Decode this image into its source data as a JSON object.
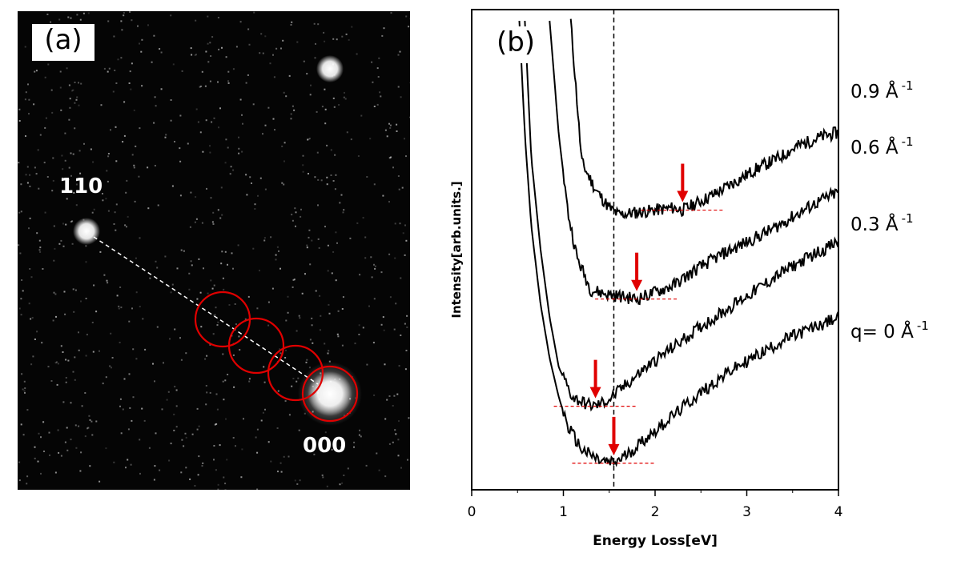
{
  "panel_a": {
    "label": "(a)",
    "spot_labels": [
      "110",
      "000"
    ]
  },
  "panel_b_label": "(b)",
  "colors": {
    "curve": "#000000",
    "marker": "#e00000",
    "diffraction_bg": "#050505",
    "spot": "#ffffff"
  },
  "chart_data": {
    "type": "line",
    "xlabel": "Energy Loss[eV]",
    "ylabel": "Intensity[arb.units.]",
    "xlim": [
      0,
      4
    ],
    "xticks": [
      "0",
      "1",
      "2",
      "3",
      "4"
    ],
    "grid": false,
    "vertical_reference_line_ev": 1.55,
    "series": [
      {
        "name": "0.9 Å-1",
        "label_main": "0.9 Å",
        "label_sup": "-1",
        "minimum_ev": 2.3,
        "points": [
          [
            1.08,
            10.0
          ],
          [
            1.2,
            6.9
          ],
          [
            1.35,
            6.3
          ],
          [
            1.5,
            5.9
          ],
          [
            1.6,
            5.75
          ],
          [
            1.8,
            5.8
          ],
          [
            2.0,
            5.85
          ],
          [
            2.2,
            5.9
          ],
          [
            2.3,
            5.85
          ],
          [
            2.45,
            6.0
          ],
          [
            2.65,
            6.2
          ],
          [
            2.9,
            6.5
          ],
          [
            3.1,
            6.75
          ],
          [
            3.35,
            7.0
          ],
          [
            3.55,
            7.25
          ],
          [
            3.8,
            7.45
          ],
          [
            4.0,
            7.55
          ]
        ]
      },
      {
        "name": "0.6 Å-1",
        "label_main": "0.6 Å",
        "label_sup": "-1",
        "minimum_ev": 1.8,
        "points": [
          [
            0.85,
            10.0
          ],
          [
            0.95,
            7.5
          ],
          [
            1.05,
            5.8
          ],
          [
            1.15,
            4.8
          ],
          [
            1.3,
            4.1
          ],
          [
            1.5,
            4.0
          ],
          [
            1.65,
            3.95
          ],
          [
            1.8,
            3.9
          ],
          [
            2.0,
            4.05
          ],
          [
            2.2,
            4.2
          ],
          [
            2.45,
            4.55
          ],
          [
            2.7,
            4.85
          ],
          [
            3.0,
            5.15
          ],
          [
            3.25,
            5.4
          ],
          [
            3.5,
            5.7
          ],
          [
            3.75,
            6.0
          ],
          [
            4.0,
            6.25
          ]
        ]
      },
      {
        "name": "0.3 Å-1",
        "label_main": "0.3 Å",
        "label_sup": "-1",
        "minimum_ev": 1.35,
        "points": [
          [
            0.58,
            10.0
          ],
          [
            0.65,
            7.0
          ],
          [
            0.75,
            5.0
          ],
          [
            0.85,
            3.5
          ],
          [
            0.95,
            2.4
          ],
          [
            1.1,
            1.75
          ],
          [
            1.25,
            1.6
          ],
          [
            1.35,
            1.55
          ],
          [
            1.5,
            1.7
          ],
          [
            1.7,
            2.05
          ],
          [
            1.9,
            2.4
          ],
          [
            2.2,
            2.85
          ],
          [
            2.5,
            3.3
          ],
          [
            2.8,
            3.7
          ],
          [
            3.1,
            4.1
          ],
          [
            3.4,
            4.5
          ],
          [
            3.7,
            4.85
          ],
          [
            4.0,
            5.15
          ]
        ]
      },
      {
        "name": "q= 0 Å-1",
        "label_main": "q= 0 Å",
        "label_sup": "-1",
        "minimum_ev": 1.55,
        "points": [
          [
            0.52,
            10.0
          ],
          [
            0.58,
            7.5
          ],
          [
            0.65,
            5.5
          ],
          [
            0.75,
            3.8
          ],
          [
            0.85,
            2.6
          ],
          [
            0.95,
            1.75
          ],
          [
            1.05,
            1.1
          ],
          [
            1.2,
            0.6
          ],
          [
            1.4,
            0.35
          ],
          [
            1.55,
            0.3
          ],
          [
            1.7,
            0.5
          ],
          [
            1.9,
            0.85
          ],
          [
            2.2,
            1.35
          ],
          [
            2.5,
            1.85
          ],
          [
            2.8,
            2.3
          ],
          [
            3.1,
            2.65
          ],
          [
            3.4,
            3.0
          ],
          [
            3.7,
            3.25
          ],
          [
            4.0,
            3.5
          ]
        ]
      }
    ]
  }
}
